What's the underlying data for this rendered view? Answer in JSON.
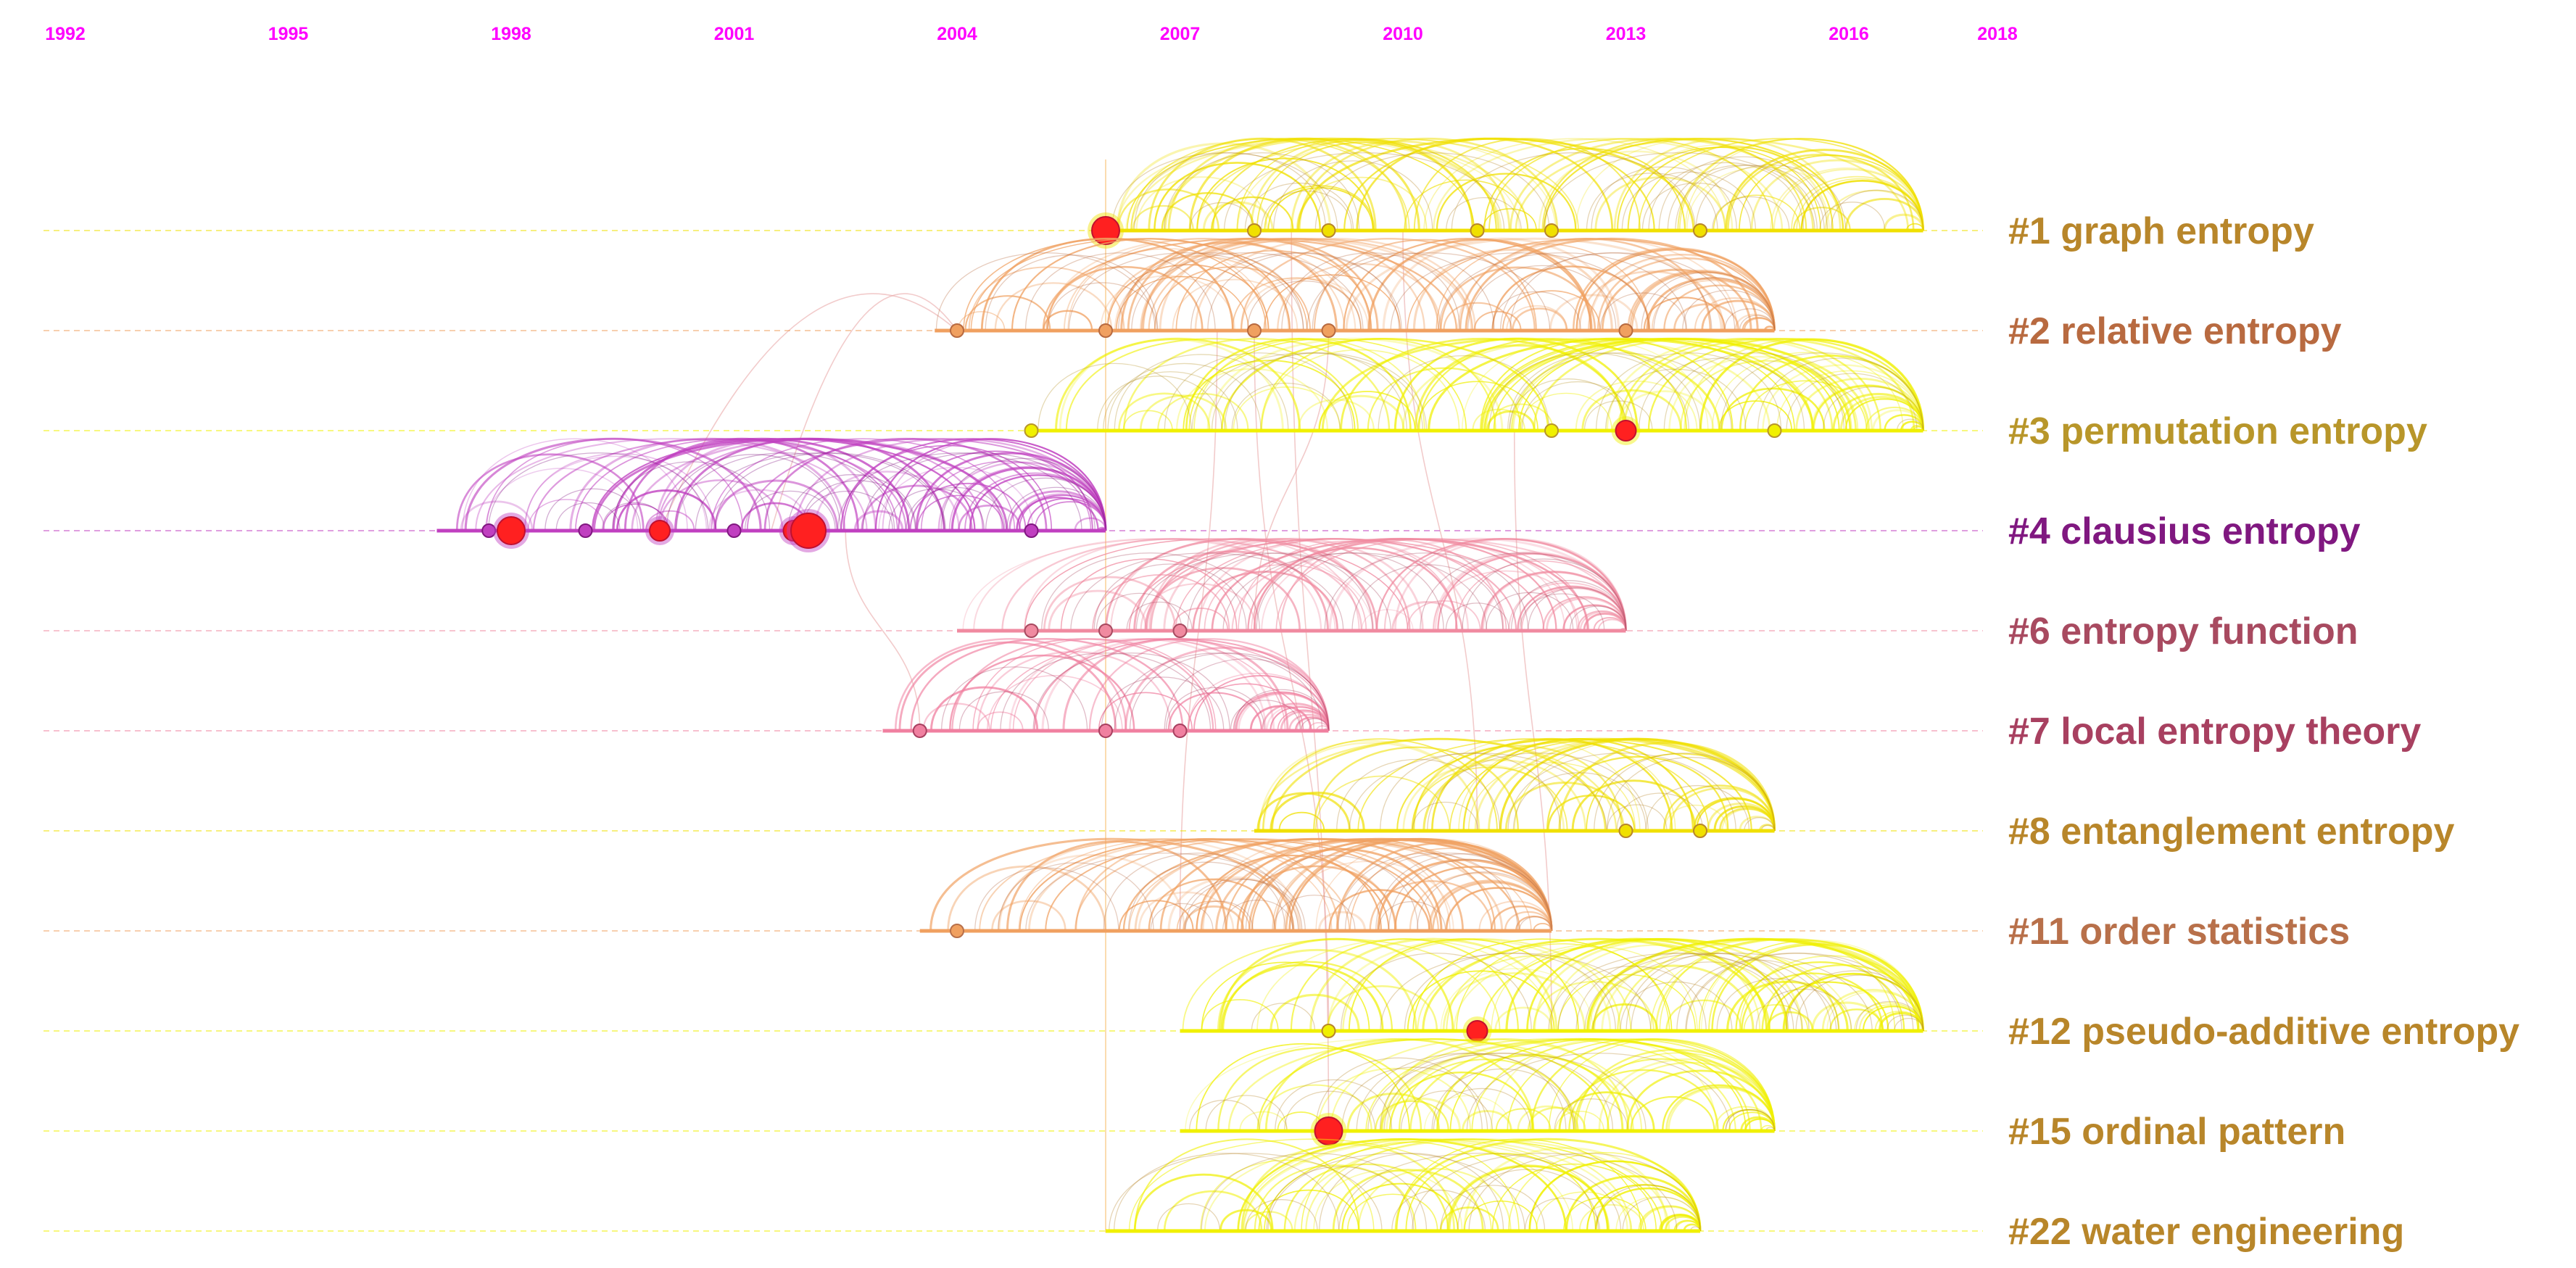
{
  "years": [
    "1992",
    "1995",
    "1998",
    "2001",
    "2004",
    "2007",
    "2010",
    "2013",
    "2016",
    "2018"
  ],
  "clusters": [
    {
      "label": "#1 graph entropy",
      "color": "#b8862a",
      "line_color": "#f0e000",
      "start": 2006.0,
      "end": 2017.0,
      "nodes": [
        {
          "year": 2006.0,
          "size": 3
        },
        {
          "year": 2008.0,
          "size": 1
        },
        {
          "year": 2009.0,
          "size": 1
        },
        {
          "year": 2011.0,
          "size": 1
        },
        {
          "year": 2012.0,
          "size": 1
        },
        {
          "year": 2014.0,
          "size": 1
        }
      ]
    },
    {
      "label": "#2 relative entropy",
      "color": "#b86a40",
      "line_color": "#f0a060",
      "start": 2003.7,
      "end": 2015.0,
      "nodes": [
        {
          "year": 2004.0,
          "size": 1
        },
        {
          "year": 2006.0,
          "size": 1
        },
        {
          "year": 2008.0,
          "size": 1
        },
        {
          "year": 2009.0,
          "size": 1
        },
        {
          "year": 2013.0,
          "size": 1
        }
      ]
    },
    {
      "label": "#3 permutation entropy",
      "color": "#b8962a",
      "line_color": "#f0f000",
      "start": 2005.0,
      "end": 2017.0,
      "nodes": [
        {
          "year": 2005.0,
          "size": 1
        },
        {
          "year": 2012.0,
          "size": 1
        },
        {
          "year": 2013.0,
          "size": 2
        },
        {
          "year": 2015.0,
          "size": 1
        }
      ]
    },
    {
      "label": "#4 clausius entropy",
      "color": "#801880",
      "line_color": "#c040c0",
      "start": 1997.0,
      "end": 2006.0,
      "nodes": [
        {
          "year": 1997.7,
          "size": 1
        },
        {
          "year": 1998.0,
          "size": 3
        },
        {
          "year": 1999.0,
          "size": 1
        },
        {
          "year": 2000.0,
          "size": 2
        },
        {
          "year": 2001.0,
          "size": 1
        },
        {
          "year": 2001.8,
          "size": 2
        },
        {
          "year": 2002.0,
          "size": 4
        },
        {
          "year": 2005.0,
          "size": 1
        }
      ]
    },
    {
      "label": "#6 entropy function",
      "color": "#a84a60",
      "line_color": "#f08aa0",
      "start": 2004.0,
      "end": 2013.0,
      "nodes": [
        {
          "year": 2005.0,
          "size": 1
        },
        {
          "year": 2006.0,
          "size": 1
        },
        {
          "year": 2007.0,
          "size": 1
        }
      ]
    },
    {
      "label": "#7 local entropy theory",
      "color": "#a84060",
      "line_color": "#f080a0",
      "start": 2003.0,
      "end": 2009.0,
      "nodes": [
        {
          "year": 2003.5,
          "size": 1
        },
        {
          "year": 2006.0,
          "size": 1
        },
        {
          "year": 2007.0,
          "size": 1
        }
      ]
    },
    {
      "label": "#8 entanglement entropy",
      "color": "#b8862a",
      "line_color": "#f0e000",
      "start": 2008.0,
      "end": 2015.0,
      "nodes": [
        {
          "year": 2013.0,
          "size": 1
        },
        {
          "year": 2014.0,
          "size": 1
        }
      ]
    },
    {
      "label": "#11 order statistics",
      "color": "#b8704a",
      "line_color": "#f0a060",
      "start": 2003.5,
      "end": 2012.0,
      "nodes": [
        {
          "year": 2004.0,
          "size": 1
        }
      ]
    },
    {
      "label": "#12 pseudo-additive entropy",
      "color": "#b8862a",
      "line_color": "#f0f000",
      "start": 2007.0,
      "end": 2017.0,
      "nodes": [
        {
          "year": 2009.0,
          "size": 1
        },
        {
          "year": 2011.0,
          "size": 2
        }
      ]
    },
    {
      "label": "#15 ordinal pattern",
      "color": "#b8862a",
      "line_color": "#f0f000",
      "start": 2007.0,
      "end": 2015.0,
      "nodes": [
        {
          "year": 2009.0,
          "size": 3
        }
      ]
    },
    {
      "label": "#22 water engineering",
      "color": "#b8862a",
      "line_color": "#f0f000",
      "start": 2006.0,
      "end": 2014.0,
      "nodes": []
    }
  ]
}
